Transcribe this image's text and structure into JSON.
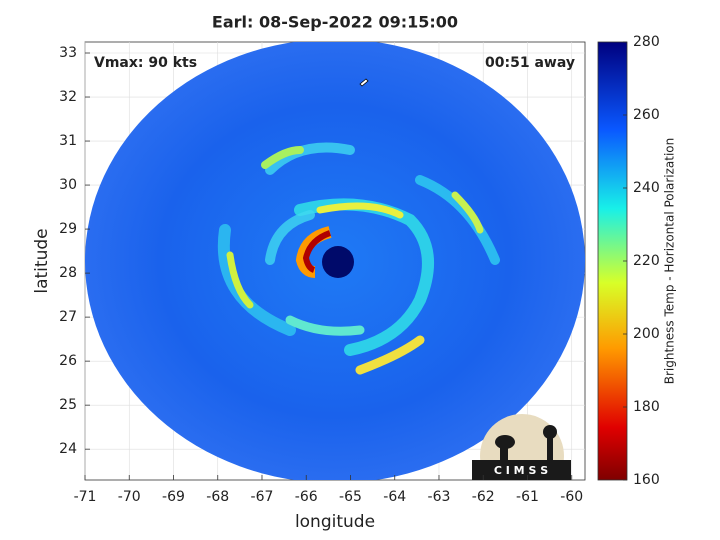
{
  "chart_data": {
    "type": "heatmap",
    "title": "Earl: 08-Sep-2022 09:15:00",
    "annotations": [
      "Vmax: 90 kts",
      "00:51 away"
    ],
    "x_label": "longitude",
    "y_label": "latitude",
    "xlim": [
      -71,
      -59.7
    ],
    "ylim": [
      23.3,
      33.25
    ],
    "xticks": [
      -71,
      -70,
      -69,
      -68,
      -67,
      -66,
      -65,
      -64,
      -63,
      -62,
      -61,
      -60
    ],
    "yticks": [
      24,
      25,
      26,
      27,
      28,
      29,
      30,
      31,
      32,
      33
    ],
    "grid": true,
    "colorbar": {
      "label": "Brightness Temp - Horizontal Polarization",
      "lim": [
        160,
        280
      ],
      "ticks": [
        160,
        180,
        200,
        220,
        240,
        260,
        280
      ]
    },
    "logo": "C I M S S"
  }
}
